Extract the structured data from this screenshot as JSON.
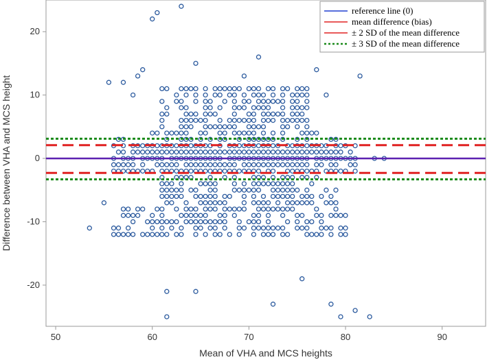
{
  "chart_data": {
    "type": "scatter",
    "title": "",
    "xlabel": "Mean of VHA and MCS heights",
    "ylabel": "Difference between VHA and MCS height",
    "xlim": [
      49,
      94.5
    ],
    "ylim": [
      -26.5,
      25
    ],
    "xticks": [
      50,
      60,
      70,
      80,
      90
    ],
    "yticks": [
      -20,
      -10,
      0,
      10,
      20
    ],
    "grid": false,
    "colors": {
      "points": "#2b5a9e",
      "reference": "#5b1fb0",
      "bias": "#e02020",
      "sd2": "#e02020",
      "sd3": "#1a8a1a"
    },
    "lines": {
      "reference": 0,
      "bias": 0,
      "sd2_upper": 2.1,
      "sd2_lower": -2.3,
      "sd3_upper": 3.1,
      "sd3_lower": -3.3
    },
    "legend": {
      "position": "top-right",
      "entries": [
        {
          "label": "reference line (0)",
          "color": "#1f3fd0",
          "style": "solid"
        },
        {
          "label": "mean difference (bias)",
          "color": "#e02020",
          "style": "solid"
        },
        {
          "label": "± 2 SD of the mean difference",
          "color": "#e02020",
          "style": "solid"
        },
        {
          "label": "± 3 SD of the mean difference",
          "color": "#1a8a1a",
          "style": "dotted"
        }
      ]
    },
    "points": {
      "outliers": [
        [
          60,
          22
        ],
        [
          60.5,
          23
        ],
        [
          63,
          24
        ],
        [
          55.5,
          12
        ],
        [
          57,
          12
        ],
        [
          58.5,
          13
        ],
        [
          59,
          14
        ],
        [
          58,
          10
        ],
        [
          64.5,
          15
        ],
        [
          69.5,
          13
        ],
        [
          71,
          16
        ],
        [
          77,
          14
        ],
        [
          81.5,
          13
        ],
        [
          76,
          10
        ],
        [
          78,
          10
        ],
        [
          53.5,
          -11
        ],
        [
          55,
          -7
        ],
        [
          61.5,
          -21
        ],
        [
          64.5,
          -21
        ],
        [
          61.5,
          -25
        ],
        [
          72.5,
          -23
        ],
        [
          75.5,
          -19
        ],
        [
          78.5,
          -23
        ],
        [
          79.5,
          -25
        ],
        [
          81,
          -24
        ],
        [
          82.5,
          -25
        ],
        [
          80,
          -12
        ],
        [
          84,
          0
        ],
        [
          83,
          0
        ]
      ],
      "clusters": [
        {
          "x_start": 56,
          "x_end": 81,
          "y_start": -2,
          "y_end": 2,
          "x_step": 0.5,
          "prob": 0.82
        },
        {
          "x_start": 61,
          "x_end": 76,
          "y_start": -12,
          "y_end": 11,
          "x_step": 0.5,
          "prob": 0.62
        },
        {
          "x_start": 56,
          "x_end": 61,
          "y_start": -12,
          "y_end": -8,
          "x_step": 0.5,
          "prob": 0.55
        },
        {
          "x_start": 76,
          "x_end": 80,
          "y_start": -12,
          "y_end": -8,
          "x_step": 0.5,
          "prob": 0.5
        },
        {
          "x_start": 56,
          "x_end": 61,
          "y_start": 3,
          "y_end": 4,
          "x_step": 0.5,
          "prob": 0.3
        },
        {
          "x_start": 76,
          "x_end": 79,
          "y_start": -7,
          "y_end": 4,
          "x_step": 0.5,
          "prob": 0.3
        }
      ]
    }
  }
}
